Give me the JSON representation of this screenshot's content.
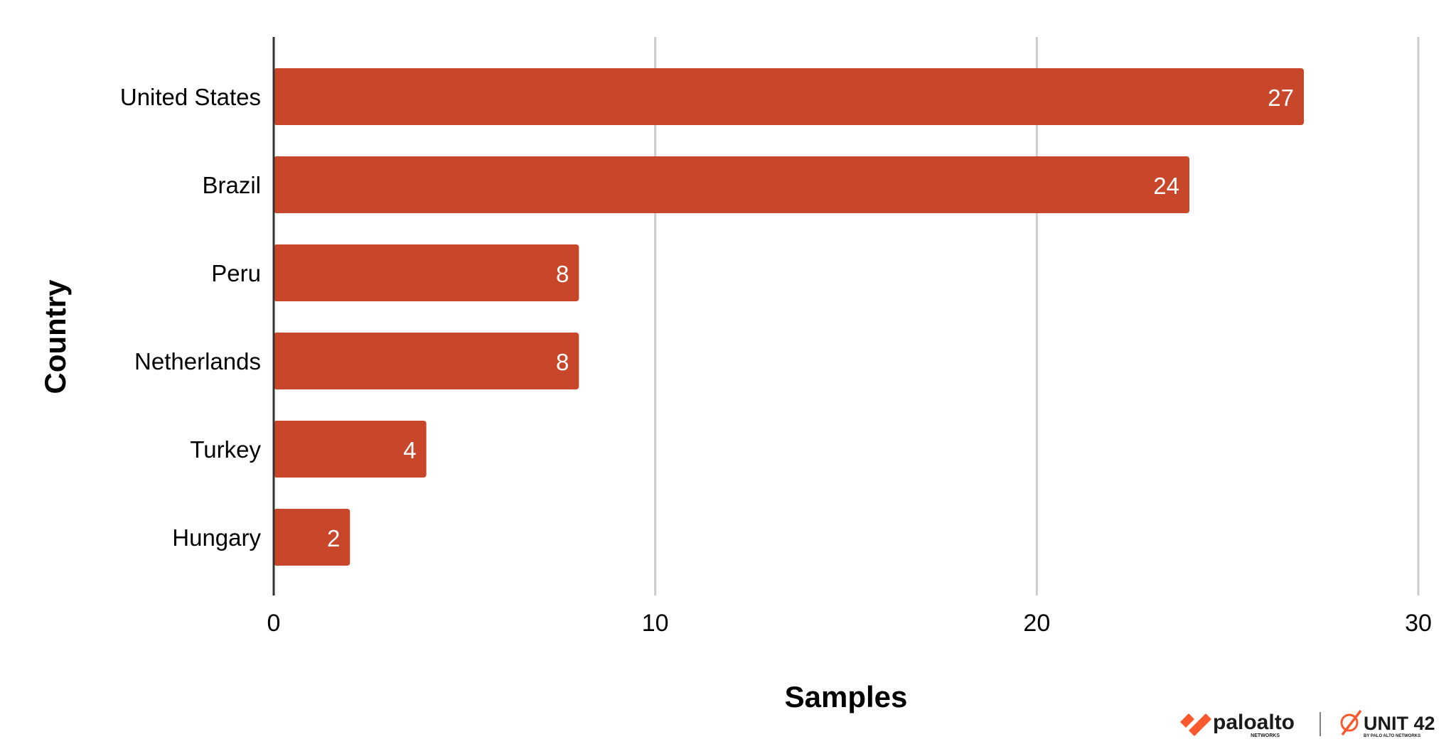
{
  "chart_data": {
    "type": "bar",
    "orientation": "horizontal",
    "categories": [
      "United States",
      "Brazil",
      "Peru",
      "Netherlands",
      "Turkey",
      "Hungary"
    ],
    "values": [
      27,
      24,
      8,
      8,
      4,
      2
    ],
    "xlabel": "Samples",
    "ylabel": "Country",
    "xlim": [
      0,
      30
    ],
    "xticks": [
      "0",
      "10",
      "20",
      "30"
    ],
    "grid": "vertical",
    "data_labels": true,
    "bar_color": "#C8472A"
  },
  "branding": {
    "logo1": "paloalto",
    "logo1_sub": "NETWORKS",
    "logo2": "UNIT 42",
    "logo2_sub": "BY PALO ALTO NETWORKS"
  }
}
